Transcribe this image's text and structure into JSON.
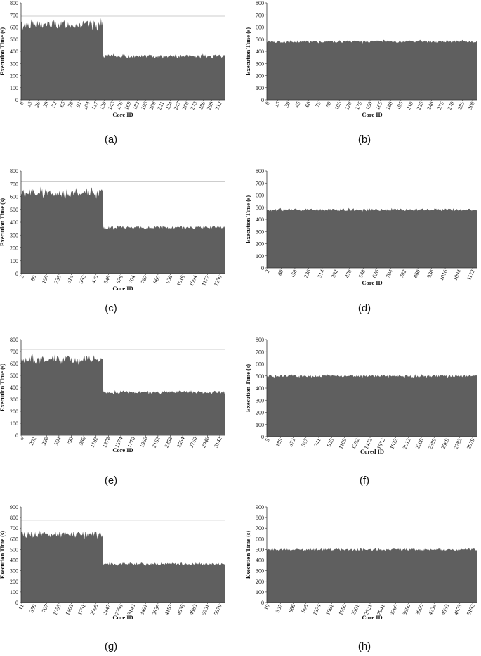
{
  "chart_data": [
    {
      "panel": "(a)",
      "type": "area",
      "xlabel": "Core ID",
      "ylabel": "Execution Time (s)",
      "ylim": [
        0,
        800
      ],
      "yticks": [
        0,
        100,
        200,
        300,
        400,
        500,
        600,
        700,
        800
      ],
      "x_tick_labels": [
        "0",
        "13",
        "26",
        "39",
        "52",
        "65",
        "78",
        "91",
        "104",
        "117",
        "130",
        "143",
        "156",
        "169",
        "182",
        "195",
        "208",
        "221",
        "234",
        "247",
        "260",
        "273",
        "286",
        "299",
        "312"
      ],
      "x_range": [
        0,
        320
      ],
      "reference_line": 690,
      "segments": [
        {
          "from": 0,
          "to": 128,
          "mean": 620,
          "jitter": 35
        },
        {
          "from": 128,
          "to": 320,
          "mean": 360,
          "jitter": 14
        }
      ],
      "color": "#5f5f5f"
    },
    {
      "panel": "(b)",
      "type": "area",
      "xlabel": "Core ID",
      "ylabel": "Execution Time (s)",
      "ylim": [
        0,
        800
      ],
      "yticks": [
        0,
        100,
        200,
        300,
        400,
        500,
        600,
        700,
        800
      ],
      "x_tick_labels": [
        "0",
        "15",
        "30",
        "45",
        "60",
        "75",
        "90",
        "105",
        "120",
        "135",
        "150",
        "165",
        "180",
        "195",
        "210",
        "225",
        "240",
        "255",
        "270",
        "285",
        "300"
      ],
      "x_range": [
        0,
        315
      ],
      "reference_line": null,
      "segments": [
        {
          "from": 0,
          "to": 315,
          "mean": 480,
          "jitter": 10
        }
      ],
      "color": "#5f5f5f"
    },
    {
      "panel": "(c)",
      "type": "area",
      "xlabel": "Core ID",
      "ylabel": "Execution Time (s)",
      "ylim": [
        0,
        800
      ],
      "yticks": [
        0,
        100,
        200,
        300,
        400,
        500,
        600,
        700,
        800
      ],
      "x_tick_labels": [
        "2",
        "80",
        "158",
        "236",
        "314",
        "392",
        "470",
        "548",
        "626",
        "704",
        "782",
        "860",
        "938",
        "1016",
        "1094",
        "1172",
        "1250"
      ],
      "x_range": [
        0,
        1280
      ],
      "reference_line": 715,
      "segments": [
        {
          "from": 0,
          "to": 512,
          "mean": 630,
          "jitter": 30
        },
        {
          "from": 512,
          "to": 1280,
          "mean": 360,
          "jitter": 12
        }
      ],
      "color": "#5f5f5f"
    },
    {
      "panel": "(d)",
      "type": "area",
      "xlabel": "Core ID",
      "ylabel": "Execution Time (s)",
      "ylim": [
        0,
        800
      ],
      "yticks": [
        0,
        100,
        200,
        300,
        400,
        500,
        600,
        700,
        800
      ],
      "x_tick_labels": [
        "2",
        "80",
        "158",
        "236",
        "314",
        "392",
        "470",
        "548",
        "626",
        "704",
        "782",
        "860",
        "938",
        "1016",
        "1094",
        "1172"
      ],
      "x_range": [
        0,
        1250
      ],
      "reference_line": null,
      "segments": [
        {
          "from": 0,
          "to": 1250,
          "mean": 480,
          "jitter": 10
        }
      ],
      "color": "#5f5f5f"
    },
    {
      "panel": "(e)",
      "type": "area",
      "xlabel": "Core ID",
      "ylabel": "Execution Time (s)",
      "ylim": [
        0,
        800
      ],
      "yticks": [
        0,
        100,
        200,
        300,
        400,
        500,
        600,
        700,
        800
      ],
      "x_tick_labels": [
        "6",
        "202",
        "398",
        "594",
        "790",
        "986",
        "1182",
        "1378",
        "1574",
        "1770",
        "1966",
        "2162",
        "2358",
        "2554",
        "2750",
        "2946",
        "3142"
      ],
      "x_range": [
        0,
        3200
      ],
      "reference_line": 718,
      "segments": [
        {
          "from": 0,
          "to": 1280,
          "mean": 635,
          "jitter": 30
        },
        {
          "from": 1280,
          "to": 3200,
          "mean": 360,
          "jitter": 12
        }
      ],
      "color": "#5f5f5f"
    },
    {
      "panel": "(f)",
      "type": "area",
      "xlabel": "Cored ID",
      "ylabel": "Execution Time (s)",
      "ylim": [
        0,
        800
      ],
      "yticks": [
        0,
        100,
        200,
        300,
        400,
        500,
        600,
        700,
        800
      ],
      "x_tick_labels": [
        "5",
        "189",
        "372",
        "557",
        "741",
        "925",
        "1109",
        "1292",
        "1472",
        "1652",
        "1832",
        "2012",
        "2208",
        "2389",
        "2569",
        "2782",
        "2979"
      ],
      "x_range": [
        0,
        3100
      ],
      "reference_line": null,
      "segments": [
        {
          "from": 0,
          "to": 3100,
          "mean": 500,
          "jitter": 10
        }
      ],
      "color": "#5f5f5f"
    },
    {
      "panel": "(g)",
      "type": "area",
      "xlabel": "Core ID",
      "ylabel": "Execution Time (s)",
      "ylim": [
        0,
        900
      ],
      "yticks": [
        0,
        100,
        200,
        300,
        400,
        500,
        600,
        700,
        800,
        900
      ],
      "x_tick_labels": [
        "11",
        "359",
        "707",
        "1055",
        "1403",
        "1751",
        "2099",
        "2447",
        "2795",
        "3143",
        "3491",
        "3839",
        "4187",
        "4535",
        "4883",
        "5231",
        "5579"
      ],
      "x_range": [
        0,
        5760
      ],
      "reference_line": 775,
      "segments": [
        {
          "from": 0,
          "to": 2304,
          "mean": 640,
          "jitter": 30
        },
        {
          "from": 2304,
          "to": 5760,
          "mean": 365,
          "jitter": 12
        }
      ],
      "color": "#5f5f5f"
    },
    {
      "panel": "(h)",
      "type": "area",
      "xlabel": "Core ID",
      "ylabel": "Execution Time (s)",
      "ylim": [
        0,
        900
      ],
      "yticks": [
        0,
        100,
        200,
        300,
        400,
        500,
        600,
        700,
        800,
        900
      ],
      "x_tick_labels": [
        "10",
        "337",
        "666",
        "996",
        "1324",
        "1661",
        "1980",
        "2301",
        "2621",
        "2941",
        "3260",
        "3580",
        "3900",
        "4234",
        "4553",
        "4873",
        "5192"
      ],
      "x_range": [
        0,
        5300
      ],
      "reference_line": null,
      "segments": [
        {
          "from": 0,
          "to": 5300,
          "mean": 500,
          "jitter": 10
        }
      ],
      "color": "#5f5f5f"
    }
  ]
}
